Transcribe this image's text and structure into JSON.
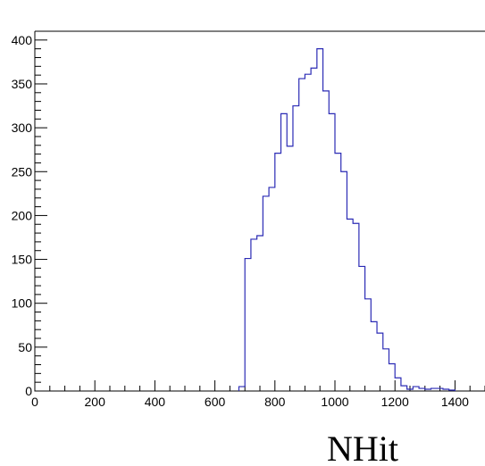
{
  "chart_data": {
    "type": "histogram",
    "title": "",
    "xlabel": "NHit",
    "ylabel": "",
    "xlim": [
      0,
      1500
    ],
    "ylim": [
      0,
      410
    ],
    "bin_width": 20,
    "x_ticks": [
      0,
      200,
      400,
      600,
      800,
      1000,
      1200,
      1400
    ],
    "y_ticks": [
      0,
      50,
      100,
      150,
      200,
      250,
      300,
      350,
      400
    ],
    "line_color": "#2b2bb5",
    "bins": [
      {
        "x": 680,
        "y": 5
      },
      {
        "x": 700,
        "y": 151
      },
      {
        "x": 720,
        "y": 173
      },
      {
        "x": 740,
        "y": 177
      },
      {
        "x": 760,
        "y": 222
      },
      {
        "x": 780,
        "y": 232
      },
      {
        "x": 800,
        "y": 271
      },
      {
        "x": 820,
        "y": 316
      },
      {
        "x": 840,
        "y": 279
      },
      {
        "x": 860,
        "y": 325
      },
      {
        "x": 880,
        "y": 356
      },
      {
        "x": 900,
        "y": 361
      },
      {
        "x": 920,
        "y": 368
      },
      {
        "x": 940,
        "y": 390
      },
      {
        "x": 960,
        "y": 342
      },
      {
        "x": 980,
        "y": 316
      },
      {
        "x": 1000,
        "y": 271
      },
      {
        "x": 1020,
        "y": 250
      },
      {
        "x": 1040,
        "y": 196
      },
      {
        "x": 1060,
        "y": 191
      },
      {
        "x": 1080,
        "y": 142
      },
      {
        "x": 1100,
        "y": 105
      },
      {
        "x": 1120,
        "y": 79
      },
      {
        "x": 1140,
        "y": 66
      },
      {
        "x": 1160,
        "y": 48
      },
      {
        "x": 1180,
        "y": 31
      },
      {
        "x": 1200,
        "y": 15
      },
      {
        "x": 1220,
        "y": 6
      },
      {
        "x": 1240,
        "y": 2
      },
      {
        "x": 1260,
        "y": 5
      },
      {
        "x": 1280,
        "y": 3
      },
      {
        "x": 1300,
        "y": 2
      },
      {
        "x": 1320,
        "y": 3
      },
      {
        "x": 1340,
        "y": 3
      },
      {
        "x": 1360,
        "y": 2
      },
      {
        "x": 1380,
        "y": 1
      }
    ]
  }
}
